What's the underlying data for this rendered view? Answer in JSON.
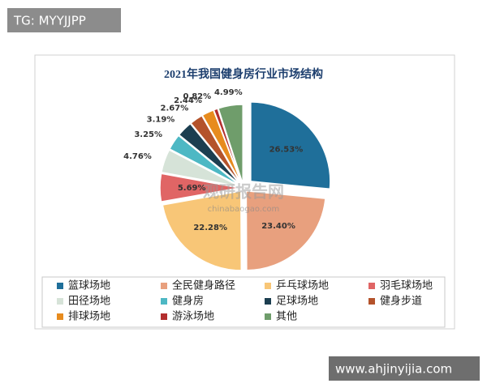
{
  "chart_data": {
    "type": "pie",
    "title": "2021年我国健身房行业市场结构",
    "categories": [
      "篮球场地",
      "全民健身路径",
      "乒乓球场地",
      "羽毛球场地",
      "田径场地",
      "健身房",
      "足球场地",
      "健身步道",
      "排球场地",
      "游泳场地",
      "其他"
    ],
    "values": [
      26.53,
      23.4,
      22.28,
      5.69,
      4.76,
      3.25,
      3.19,
      2.67,
      2.44,
      0.82,
      4.99
    ],
    "value_labels": [
      "26.53%",
      "23.40%",
      "22.28%",
      "5.69%",
      "4.76%",
      "3.25%",
      "3.19%",
      "2.67%",
      "2.44%",
      "0.82%",
      "4.99%"
    ],
    "colors": [
      "#1f6f9a",
      "#e8a07e",
      "#f8c677",
      "#e06565",
      "#d6e3d8",
      "#4db8c4",
      "#1c3e50",
      "#b4532b",
      "#e78b1e",
      "#b32e2e",
      "#6f9d6b"
    ],
    "legend": "bottom"
  },
  "watermarks": {
    "top_left": "TG: MYYJJPP",
    "bottom_right": "www.ahjinyijia.com",
    "logo": "观研报告网",
    "logo_url": "chinabaogao.com"
  }
}
